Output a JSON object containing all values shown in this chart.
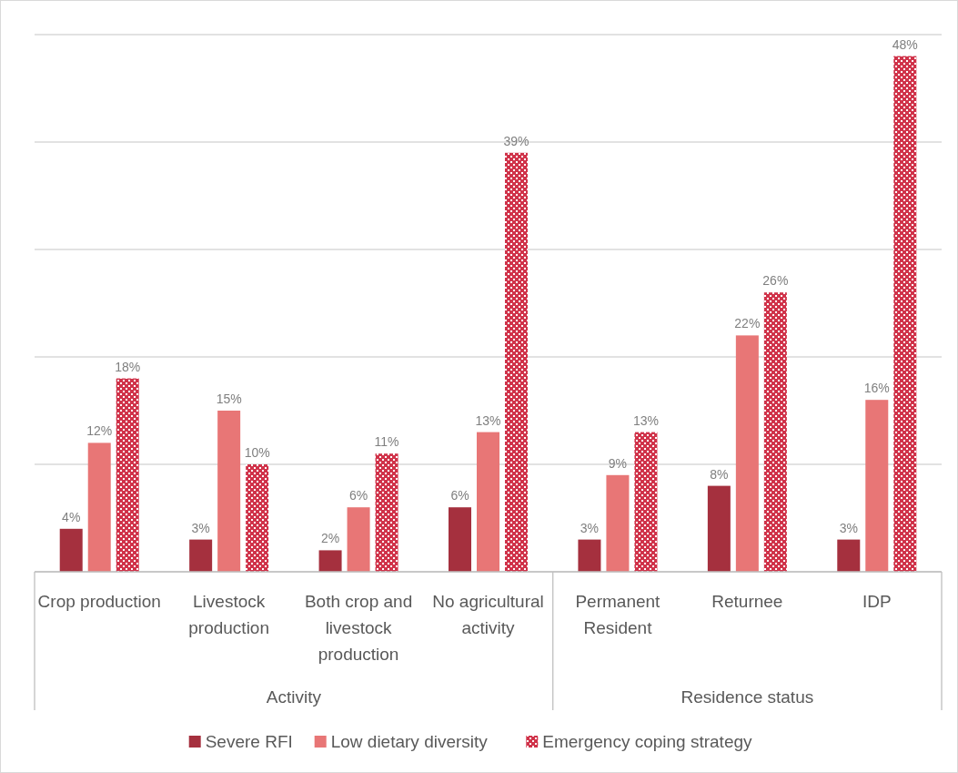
{
  "chart_data": {
    "type": "bar",
    "categories": [
      "Crop production",
      "Livestock production",
      "Both crop and livestock production",
      "No agricultural activity",
      "Permanent Resident",
      "Returnee",
      "IDP"
    ],
    "series": [
      {
        "name": "Severe RFI",
        "color": "#a5303e",
        "values": [
          4,
          3,
          2,
          6,
          3,
          8,
          3
        ],
        "value_labels": [
          "4%",
          "3%",
          "2%",
          "6%",
          "3%",
          "8%",
          "3%"
        ]
      },
      {
        "name": "Low dietary diversity",
        "color": "#e87676",
        "values": [
          12,
          15,
          6,
          13,
          9,
          22,
          16
        ],
        "value_labels": [
          "12%",
          "15%",
          "6%",
          "13%",
          "9%",
          "22%",
          "16%"
        ]
      },
      {
        "name": "Emergency coping strategy",
        "color": "#d0334a",
        "values": [
          18,
          10,
          11,
          39,
          13,
          26,
          48
        ],
        "value_labels": [
          "18%",
          "10%",
          "11%",
          "39%",
          "13%",
          "26%",
          "48%"
        ]
      }
    ],
    "annotations": [
      "Activity",
      "Residence status"
    ],
    "ylim": [
      0,
      50
    ],
    "yticks": [
      {
        "value": 0,
        "label": null
      },
      {
        "value": 10,
        "label": null
      },
      {
        "value": 20,
        "label": null
      },
      {
        "value": 30,
        "label": null
      },
      {
        "value": 40,
        "label": null
      },
      {
        "value": 50,
        "label": null
      }
    ],
    "tick_labels": "x",
    "grid": "y",
    "legend": "bottom"
  }
}
